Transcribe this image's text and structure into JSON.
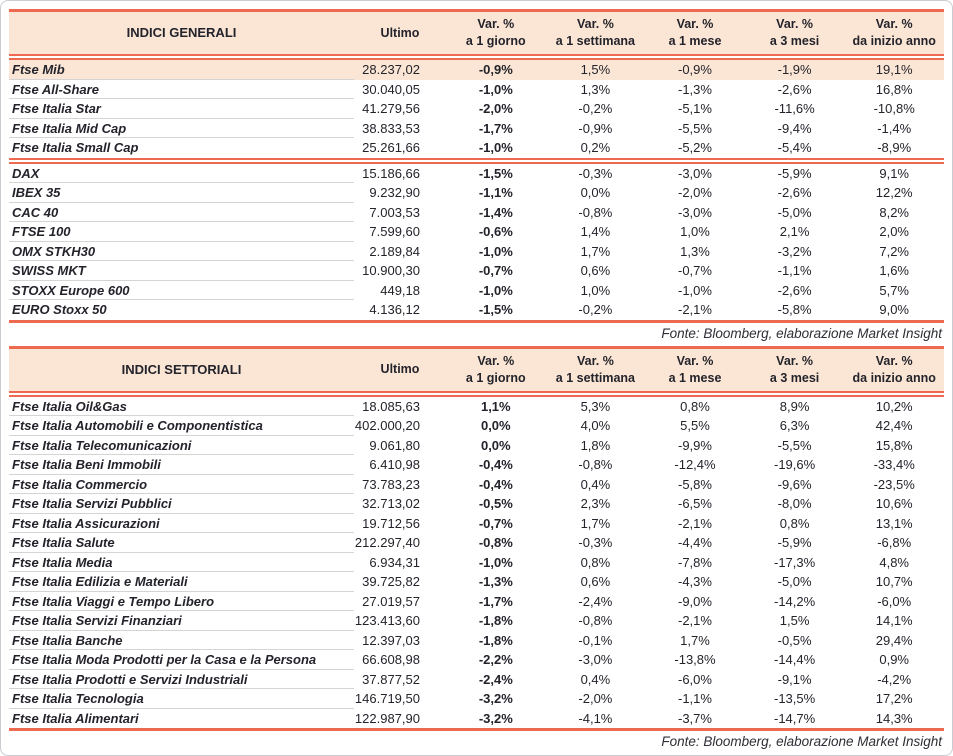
{
  "colors": {
    "red": "#ed6a50",
    "peach": "#fbe6d5",
    "text": "#23232b",
    "row_separator": "#d4d4d4"
  },
  "columns": [
    {
      "line1": "Ultimo",
      "line2": ""
    },
    {
      "line1": "Var. %",
      "line2": "a 1 giorno"
    },
    {
      "line1": "Var. %",
      "line2": "a 1 settimana"
    },
    {
      "line1": "Var. %",
      "line2": "a 1 mese"
    },
    {
      "line1": "Var. %",
      "line2": "a 3 mesi"
    },
    {
      "line1": "Var. %",
      "line2": "da inizio anno"
    }
  ],
  "tables": [
    {
      "title": "INDICI GENERALI",
      "fonte": "Fonte: Bloomberg, elaborazione Market Insight",
      "groups": [
        {
          "rows": [
            {
              "name": "Ftse Mib",
              "highlight": true,
              "values": [
                "28.237,02",
                "-0,9%",
                "1,5%",
                "-0,9%",
                "-1,9%",
                "19,1%"
              ]
            },
            {
              "name": "Ftse All-Share",
              "values": [
                "30.040,05",
                "-1,0%",
                "1,3%",
                "-1,3%",
                "-2,6%",
                "16,8%"
              ]
            },
            {
              "name": "Ftse Italia Star",
              "values": [
                "41.279,56",
                "-2,0%",
                "-0,2%",
                "-5,1%",
                "-11,6%",
                "-10,8%"
              ]
            },
            {
              "name": "Ftse Italia Mid Cap",
              "values": [
                "38.833,53",
                "-1,7%",
                "-0,9%",
                "-5,5%",
                "-9,4%",
                "-1,4%"
              ]
            },
            {
              "name": "Ftse Italia Small Cap",
              "values": [
                "25.261,66",
                "-1,0%",
                "0,2%",
                "-5,2%",
                "-5,4%",
                "-8,9%"
              ]
            }
          ]
        },
        {
          "rows": [
            {
              "name": "DAX",
              "values": [
                "15.186,66",
                "-1,5%",
                "-0,3%",
                "-3,0%",
                "-5,9%",
                "9,1%"
              ]
            },
            {
              "name": "IBEX 35",
              "values": [
                "9.232,90",
                "-1,1%",
                "0,0%",
                "-2,0%",
                "-2,6%",
                "12,2%"
              ]
            },
            {
              "name": "CAC 40",
              "values": [
                "7.003,53",
                "-1,4%",
                "-0,8%",
                "-3,0%",
                "-5,0%",
                "8,2%"
              ]
            },
            {
              "name": "FTSE 100",
              "values": [
                "7.599,60",
                "-0,6%",
                "1,4%",
                "1,0%",
                "2,1%",
                "2,0%"
              ]
            },
            {
              "name": "OMX STKH30",
              "values": [
                "2.189,84",
                "-1,0%",
                "1,7%",
                "1,3%",
                "-3,2%",
                "7,2%"
              ]
            },
            {
              "name": "SWISS MKT",
              "values": [
                "10.900,30",
                "-0,7%",
                "0,6%",
                "-0,7%",
                "-1,1%",
                "1,6%"
              ]
            },
            {
              "name": "STOXX Europe 600",
              "values": [
                "449,18",
                "-1,0%",
                "1,0%",
                "-1,0%",
                "-2,6%",
                "5,7%"
              ]
            },
            {
              "name": "EURO Stoxx 50",
              "values": [
                "4.136,12",
                "-1,5%",
                "-0,2%",
                "-2,1%",
                "-5,8%",
                "9,0%"
              ]
            }
          ]
        }
      ]
    },
    {
      "title": "INDICI SETTORIALI",
      "fonte": "Fonte: Bloomberg, elaborazione Market Insight",
      "groups": [
        {
          "rows": [
            {
              "name": "Ftse Italia Oil&Gas",
              "values": [
                "18.085,63",
                "1,1%",
                "5,3%",
                "0,8%",
                "8,9%",
                "10,2%"
              ]
            },
            {
              "name": "Ftse Italia Automobili e Componentistica",
              "values": [
                "402.000,20",
                "0,0%",
                "4,0%",
                "5,5%",
                "6,3%",
                "42,4%"
              ]
            },
            {
              "name": "Ftse Italia Telecomunicazioni",
              "values": [
                "9.061,80",
                "0,0%",
                "1,8%",
                "-9,9%",
                "-5,5%",
                "15,8%"
              ]
            },
            {
              "name": "Ftse Italia Beni Immobili",
              "values": [
                "6.410,98",
                "-0,4%",
                "-0,8%",
                "-12,4%",
                "-19,6%",
                "-33,4%"
              ]
            },
            {
              "name": "Ftse Italia Commercio",
              "values": [
                "73.783,23",
                "-0,4%",
                "0,4%",
                "-5,8%",
                "-9,6%",
                "-23,5%"
              ]
            },
            {
              "name": "Ftse Italia Servizi Pubblici",
              "values": [
                "32.713,02",
                "-0,5%",
                "2,3%",
                "-6,5%",
                "-8,0%",
                "10,6%"
              ]
            },
            {
              "name": "Ftse Italia Assicurazioni",
              "values": [
                "19.712,56",
                "-0,7%",
                "1,7%",
                "-2,1%",
                "0,8%",
                "13,1%"
              ]
            },
            {
              "name": "Ftse Italia Salute",
              "values": [
                "212.297,40",
                "-0,8%",
                "-0,3%",
                "-4,4%",
                "-5,9%",
                "-6,8%"
              ]
            },
            {
              "name": "Ftse Italia Media",
              "values": [
                "6.934,31",
                "-1,0%",
                "0,8%",
                "-7,8%",
                "-17,3%",
                "4,8%"
              ]
            },
            {
              "name": "Ftse Italia Edilizia e Materiali",
              "values": [
                "39.725,82",
                "-1,3%",
                "0,6%",
                "-4,3%",
                "-5,0%",
                "10,7%"
              ]
            },
            {
              "name": "Ftse Italia Viaggi e Tempo Libero",
              "values": [
                "27.019,57",
                "-1,7%",
                "-2,4%",
                "-9,0%",
                "-14,2%",
                "-6,0%"
              ]
            },
            {
              "name": "Ftse Italia Servizi Finanziari",
              "values": [
                "123.413,60",
                "-1,8%",
                "-0,8%",
                "-2,1%",
                "1,5%",
                "14,1%"
              ]
            },
            {
              "name": "Ftse Italia Banche",
              "values": [
                "12.397,03",
                "-1,8%",
                "-0,1%",
                "1,7%",
                "-0,5%",
                "29,4%"
              ]
            },
            {
              "name": "Ftse Italia Moda Prodotti per la Casa e la Persona",
              "values": [
                "66.608,98",
                "-2,2%",
                "-3,0%",
                "-13,8%",
                "-14,4%",
                "0,9%"
              ]
            },
            {
              "name": "Ftse Italia Prodotti e Servizi Industriali",
              "values": [
                "37.877,52",
                "-2,4%",
                "0,4%",
                "-6,0%",
                "-9,1%",
                "-4,2%"
              ]
            },
            {
              "name": "Ftse Italia Tecnologia",
              "values": [
                "146.719,50",
                "-3,2%",
                "-2,0%",
                "-1,1%",
                "-13,5%",
                "17,2%"
              ]
            },
            {
              "name": "Ftse Italia Alimentari",
              "values": [
                "122.987,90",
                "-3,2%",
                "-4,1%",
                "-3,7%",
                "-14,7%",
                "14,3%"
              ]
            }
          ]
        }
      ]
    }
  ]
}
